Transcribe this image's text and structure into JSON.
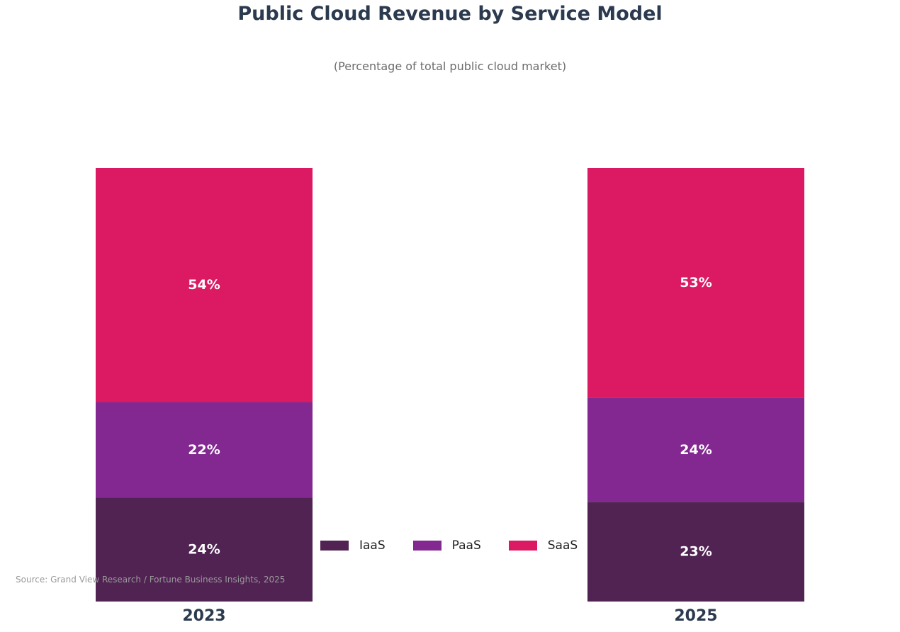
{
  "chart_data": {
    "type": "bar",
    "stacked": true,
    "title": "Public Cloud Revenue by Service Model",
    "subtitle": "(Percentage of total public cloud market)",
    "categories": [
      "2023",
      "2025"
    ],
    "series": [
      {
        "name": "IaaS",
        "values": [
          24,
          23
        ],
        "labels": [
          "24%",
          "23%"
        ],
        "color": "#512353"
      },
      {
        "name": "PaaS",
        "values": [
          22,
          24
        ],
        "labels": [
          "22%",
          "24%"
        ],
        "color": "#822890"
      },
      {
        "name": "SaaS",
        "values": [
          54,
          53
        ],
        "labels": [
          "54%",
          "53%"
        ],
        "color": "#db1a63"
      }
    ],
    "ylim": [
      0,
      100
    ],
    "grid": false,
    "legend_position": "bottom-center",
    "source": "Source: Grand View Research / Fortune Business Insights, 2025"
  }
}
